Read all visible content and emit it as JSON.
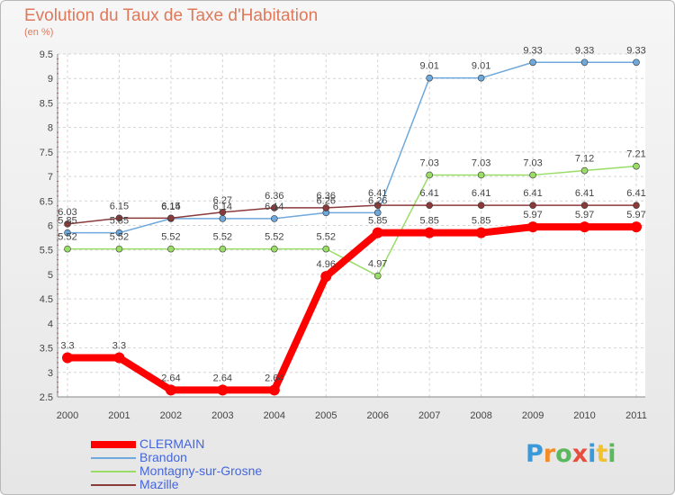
{
  "chart_data": {
    "type": "line",
    "title": "Evolution du Taux de Taxe d'Habitation",
    "ylabel": "(en %)",
    "categories": [
      "2000",
      "2001",
      "2002",
      "2003",
      "2004",
      "2005",
      "2006",
      "2007",
      "2008",
      "2009",
      "2010",
      "2011"
    ],
    "ylim": [
      2.5,
      9.5
    ],
    "yticks": [
      "2.5",
      "3",
      "3.5",
      "4",
      "4.5",
      "5",
      "5.5",
      "6",
      "6.5",
      "7",
      "7.5",
      "8",
      "8.5",
      "9",
      "9.5"
    ],
    "grid": true,
    "legend_position": "bottom-left",
    "series": [
      {
        "name": "CLERMAIN",
        "color": "#ff0000",
        "values": [
          3.3,
          3.3,
          2.64,
          2.64,
          2.64,
          4.96,
          5.85,
          5.85,
          5.85,
          5.97,
          5.97,
          5.97
        ],
        "labels": [
          "3.3",
          "3.3",
          "2.64",
          "2.64",
          "2.64",
          "4.96",
          "5.85",
          "5.85",
          "5.85",
          "5.97",
          "5.97",
          "5.97"
        ]
      },
      {
        "name": "Brandon",
        "color": "#6fa8dc",
        "values": [
          5.85,
          5.85,
          6.14,
          6.14,
          6.14,
          6.26,
          6.26,
          9.01,
          9.01,
          9.33,
          9.33,
          9.33
        ],
        "labels": [
          "5.85",
          "5.85",
          "6.14",
          "6.14",
          "6.14",
          "6.26",
          "6.26",
          "9.01",
          "9.01",
          "9.33",
          "9.33",
          "9.33"
        ]
      },
      {
        "name": "Montagny-sur-Grosne",
        "color": "#99dd66",
        "values": [
          5.52,
          5.52,
          5.52,
          5.52,
          5.52,
          5.52,
          4.97,
          7.03,
          7.03,
          7.03,
          7.12,
          7.21
        ],
        "labels": [
          "5.52",
          "5.52",
          "5.52",
          "5.52",
          "5.52",
          "5.52",
          "4.97",
          "7.03",
          "7.03",
          "7.03",
          "7.12",
          "7.21"
        ]
      },
      {
        "name": "Mazille",
        "color": "#8b3a3a",
        "values": [
          6.03,
          6.15,
          6.15,
          6.27,
          6.36,
          6.36,
          6.41,
          6.41,
          6.41,
          6.41,
          6.41,
          6.41
        ],
        "labels": [
          "6.03",
          "6.15",
          "6.15",
          "6.27",
          "6.36",
          "6.36",
          "6.41",
          "6.41",
          "6.41",
          "6.41",
          "6.41",
          "6.41"
        ]
      }
    ]
  },
  "logo": {
    "letters": [
      "P",
      "r",
      "o",
      "x",
      "i",
      "t",
      "i"
    ],
    "colors": [
      "#3a9ad9",
      "#f28c28",
      "#5cb85c",
      "#e84c3d",
      "#3a9ad9",
      "#f2c12e",
      "#5cb85c"
    ]
  }
}
